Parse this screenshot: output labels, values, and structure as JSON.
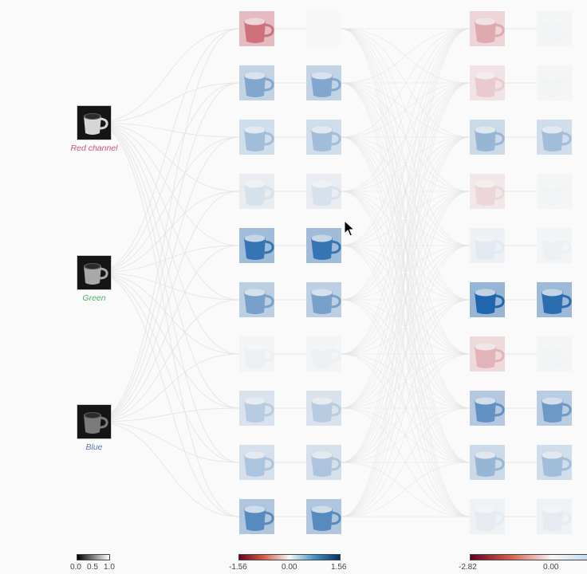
{
  "inputs": [
    {
      "label": "Red channel",
      "color": "#c2587a",
      "tint": "#d6d6d6"
    },
    {
      "label": "Green",
      "color": "#4fae68",
      "tint": "#a9a9a9"
    },
    {
      "label": "Blue",
      "color": "#5b79b8",
      "tint": "#7b7b7b"
    }
  ],
  "layer1": {
    "intensity": [
      -0.6,
      0.55,
      0.4,
      0.15,
      0.9,
      0.6,
      0.05,
      0.3,
      0.35,
      0.75
    ],
    "colorbar": {
      "min_label": "-1.56",
      "mid_label": "0.00",
      "max_label": "1.56"
    }
  },
  "layer2": {
    "intensity": [
      -0.35,
      -0.2,
      0.45,
      -0.15,
      0.1,
      1.0,
      -0.3,
      0.7,
      0.45,
      0.08
    ],
    "intensity_act": [
      0.03,
      0.03,
      0.4,
      0.03,
      0.05,
      0.95,
      0.03,
      0.65,
      0.4,
      0.08
    ],
    "colorbar": {
      "min_label": "-2.82",
      "mid_label": "0.00"
    }
  },
  "input_colorbar": {
    "labels": [
      "0.0",
      "0.5",
      "1.0"
    ]
  },
  "colors": {
    "negative": "#b2182b",
    "positive": "#2166ac",
    "neutral": "#f7f7f7",
    "edge": "#e4e4e4"
  }
}
